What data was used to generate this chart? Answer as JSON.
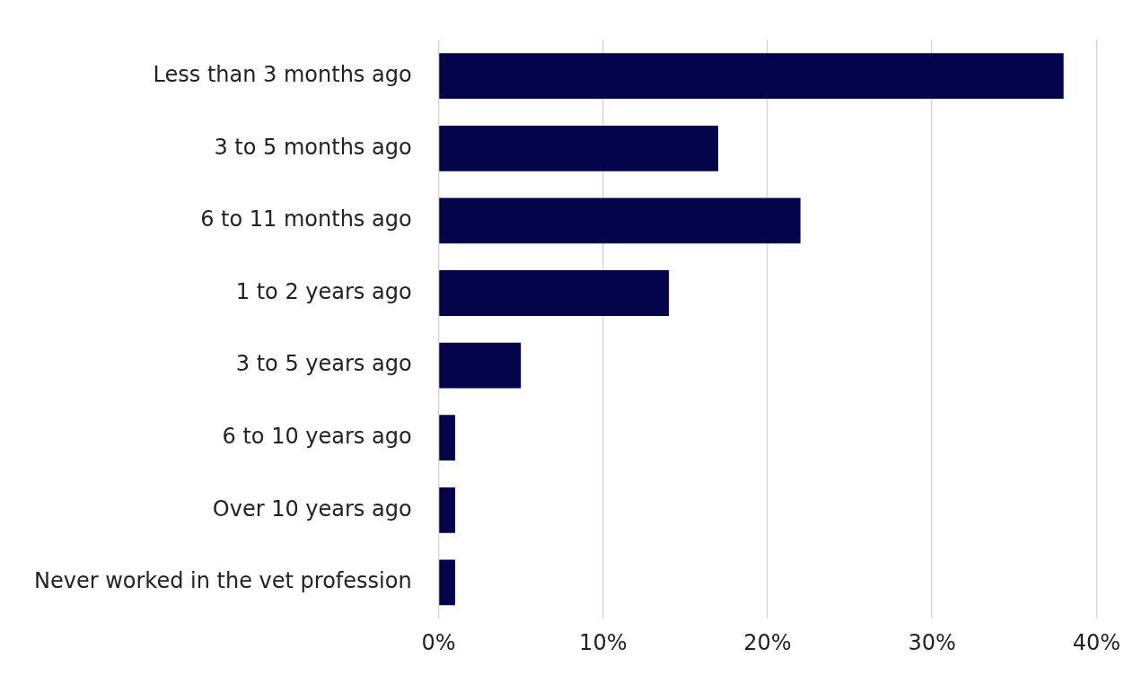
{
  "chart_data": {
    "type": "bar",
    "orientation": "horizontal",
    "categories": [
      "Less than 3 months ago",
      "3 to 5 months ago",
      "6 to 11 months ago",
      "1 to 2 years ago",
      "3 to 5 years ago",
      "6 to 10 years ago",
      "Over 10 years ago",
      "Never worked in the vet profession"
    ],
    "values": [
      38,
      17,
      22,
      14,
      5,
      1,
      1,
      1
    ],
    "color": "#03044a",
    "xlim": [
      0,
      40
    ],
    "xticks": [
      {
        "value": 0,
        "label": "0%"
      },
      {
        "value": 10,
        "label": "10%"
      },
      {
        "value": 20,
        "label": "20%"
      },
      {
        "value": 30,
        "label": "30%"
      },
      {
        "value": 40,
        "label": "40%"
      }
    ],
    "grid": "x"
  }
}
